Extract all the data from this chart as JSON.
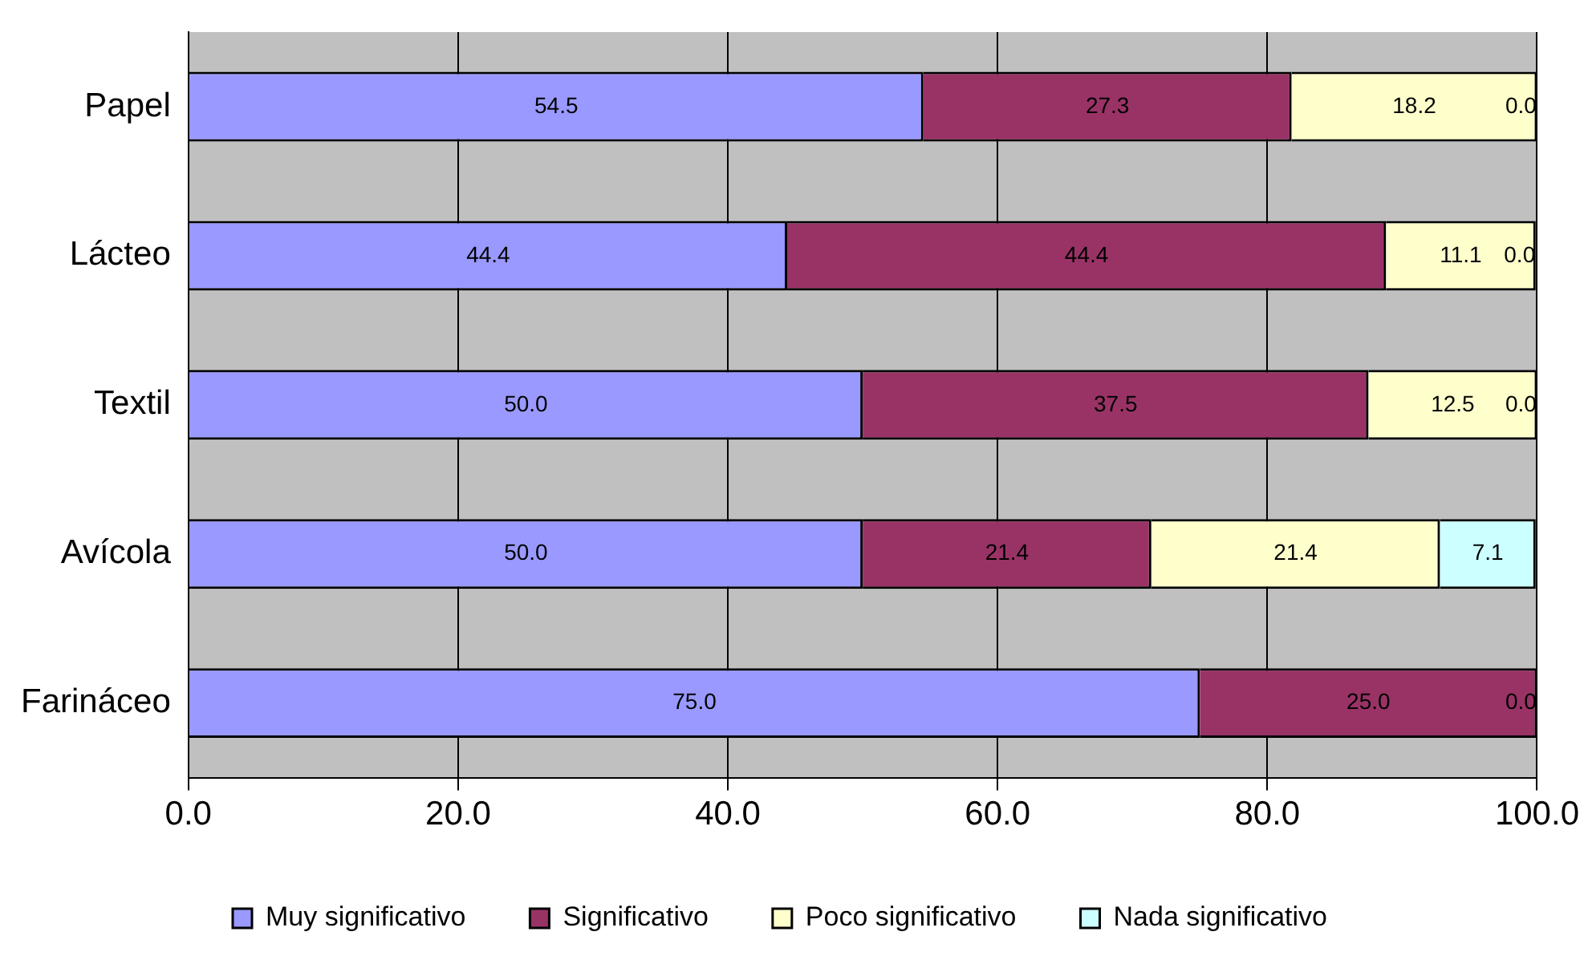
{
  "chart_data": {
    "type": "bar",
    "orientation": "horizontal",
    "stacked": true,
    "categories": [
      "Papel",
      "Lácteo",
      "Textil",
      "Avícola",
      "Farináceo"
    ],
    "series": [
      {
        "name": "Muy significativo",
        "color": "#9999ff",
        "values": [
          54.5,
          44.4,
          50.0,
          50.0,
          75.0
        ],
        "value_labels": [
          "54.5",
          "44.4",
          "50.0",
          "50.0",
          "75.0"
        ]
      },
      {
        "name": "Significativo",
        "color": "#993366",
        "values": [
          27.3,
          44.4,
          37.5,
          21.4,
          25.0
        ],
        "value_labels": [
          "27.3",
          "44.4",
          "37.5",
          "21.4",
          "25.0"
        ]
      },
      {
        "name": "Poco significativo",
        "color": "#ffffcc",
        "values": [
          18.2,
          11.1,
          12.5,
          21.4,
          null
        ],
        "value_labels": [
          "18.2",
          "11.1",
          "12.5",
          "21.4",
          null
        ]
      },
      {
        "name": "Nada significativo",
        "color": "#ccffff",
        "values": [
          0.0,
          0.0,
          0.0,
          7.1,
          0.0
        ],
        "value_labels": [
          "0.0",
          "0.0",
          "0.0",
          "7.1",
          "0.0"
        ]
      }
    ],
    "xlim": [
      0,
      100
    ],
    "xticks": [
      {
        "value": 0,
        "label": "0.0"
      },
      {
        "value": 20,
        "label": "20.0"
      },
      {
        "value": 40,
        "label": "40.0"
      },
      {
        "value": 60,
        "label": "60.0"
      },
      {
        "value": 80,
        "label": "80.0"
      },
      {
        "value": 100,
        "label": "100.0"
      }
    ],
    "grid": "x",
    "legend": "bottom"
  }
}
